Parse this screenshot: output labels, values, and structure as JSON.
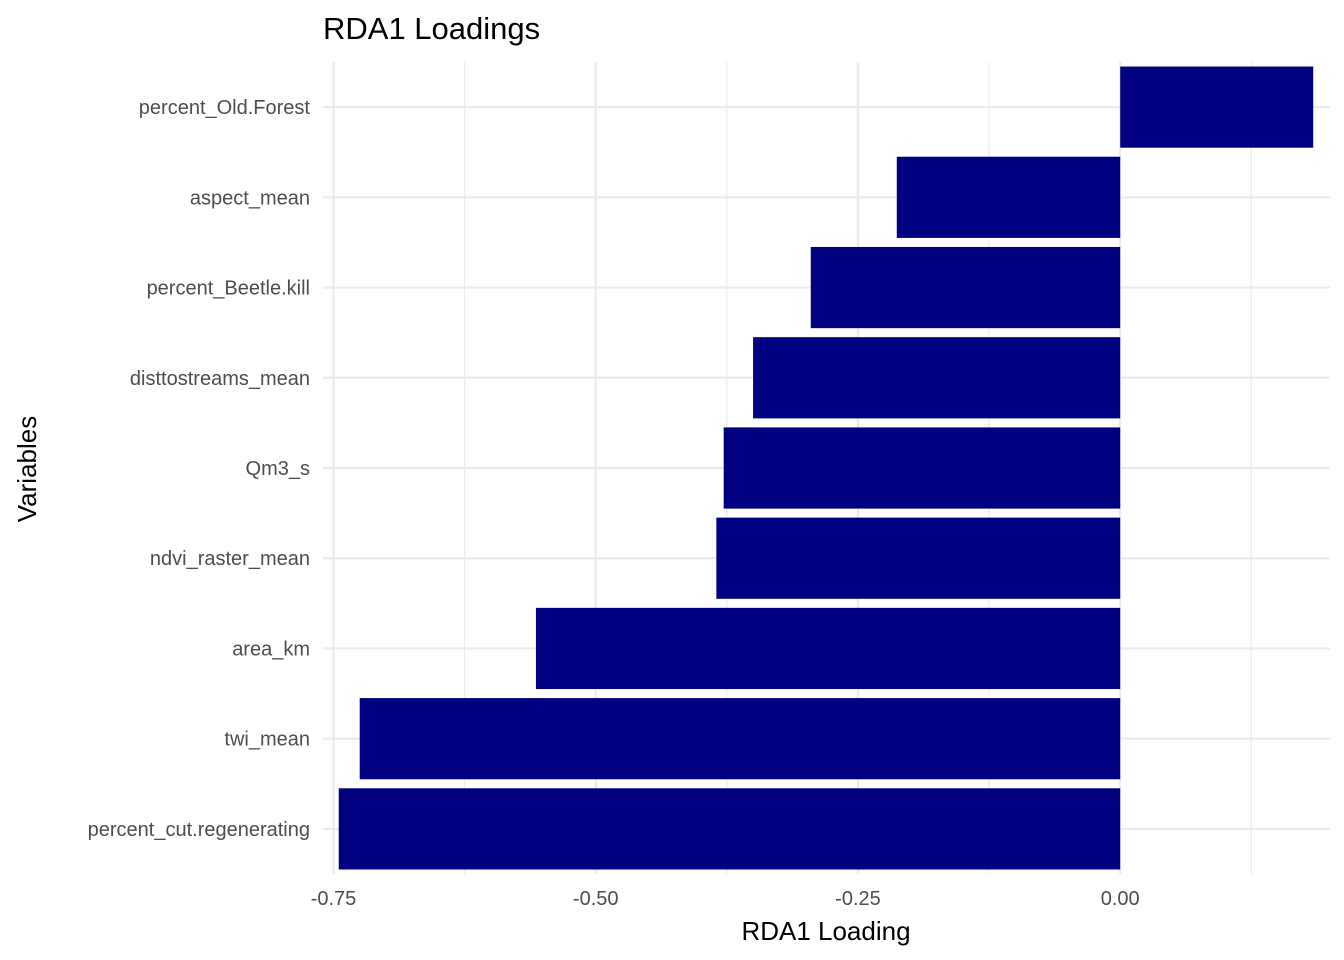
{
  "chart_data": {
    "type": "bar",
    "orientation": "horizontal",
    "title": "RDA1 Loadings",
    "xlabel": "RDA1 Loading",
    "ylabel": "Variables",
    "categories": [
      "percent_cut.regenerating",
      "twi_mean",
      "area_km",
      "ndvi_raster_mean",
      "Qm3_s",
      "disttostreams_mean",
      "percent_Beetle.kill",
      "aspect_mean",
      "percent_Old.Forest"
    ],
    "values": [
      -0.745,
      -0.725,
      -0.557,
      -0.385,
      -0.378,
      -0.35,
      -0.295,
      -0.213,
      0.184
    ],
    "bar_color": "#000080",
    "xlim": [
      -0.76,
      0.2
    ],
    "xticks": [
      -0.75,
      -0.5,
      -0.25,
      0.0
    ],
    "xtick_labels": [
      "-0.75",
      "-0.50",
      "-0.25",
      "0.00"
    ],
    "grid": true
  }
}
